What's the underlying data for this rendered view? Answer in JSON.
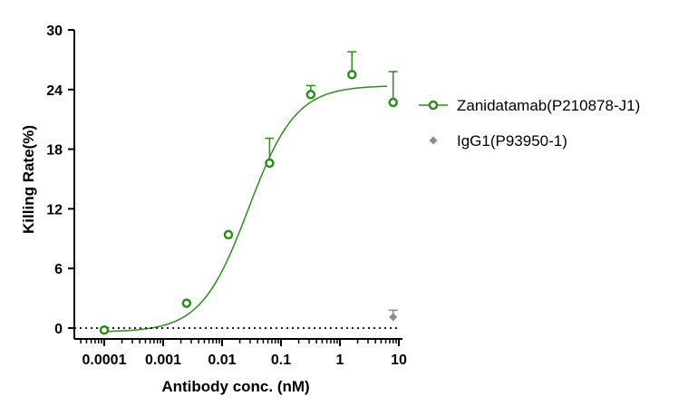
{
  "chart_data": {
    "type": "scatter",
    "xlabel": "Antibody conc. (nM)",
    "ylabel": "Killing Rate(%)",
    "x_scale": "log",
    "xlim": [
      0.0001,
      10
    ],
    "ylim": [
      0,
      30
    ],
    "x_ticks": [
      {
        "value": 0.0001,
        "label": "0.0001"
      },
      {
        "value": 0.001,
        "label": "0.001"
      },
      {
        "value": 0.01,
        "label": "0.01"
      },
      {
        "value": 0.1,
        "label": "0.1"
      },
      {
        "value": 1,
        "label": "1"
      },
      {
        "value": 10,
        "label": "10"
      }
    ],
    "y_ticks": [
      {
        "value": 0,
        "label": "0"
      },
      {
        "value": 6,
        "label": "6"
      },
      {
        "value": 12,
        "label": "12"
      },
      {
        "value": 18,
        "label": "18"
      },
      {
        "value": 24,
        "label": "24"
      },
      {
        "value": 30,
        "label": "30"
      }
    ],
    "grid": false,
    "legend_position": "right",
    "baseline": {
      "y": 0,
      "style": "dotted"
    },
    "series": [
      {
        "name": "Zanidatamab(P210878-J1)",
        "color": "#2e8b1f",
        "marker": "open-circle",
        "fit": "sigmoidal",
        "points": [
          {
            "x": 0.0001,
            "y": -0.2,
            "err": 0
          },
          {
            "x": 0.0025,
            "y": 2.5,
            "err": 0
          },
          {
            "x": 0.0128,
            "y": 9.4,
            "err": 0
          },
          {
            "x": 0.064,
            "y": 16.6,
            "err": 2.5
          },
          {
            "x": 0.32,
            "y": 23.5,
            "err": 0.9
          },
          {
            "x": 1.6,
            "y": 25.5,
            "err": 2.3
          },
          {
            "x": 8,
            "y": 22.7,
            "err": 3.1
          }
        ]
      },
      {
        "name": "IgG1(P93950-1)",
        "color": "#8c8c8c",
        "marker": "diamond",
        "points": [
          {
            "x": 8,
            "y": 1.1,
            "err": 0.7
          }
        ]
      }
    ]
  }
}
